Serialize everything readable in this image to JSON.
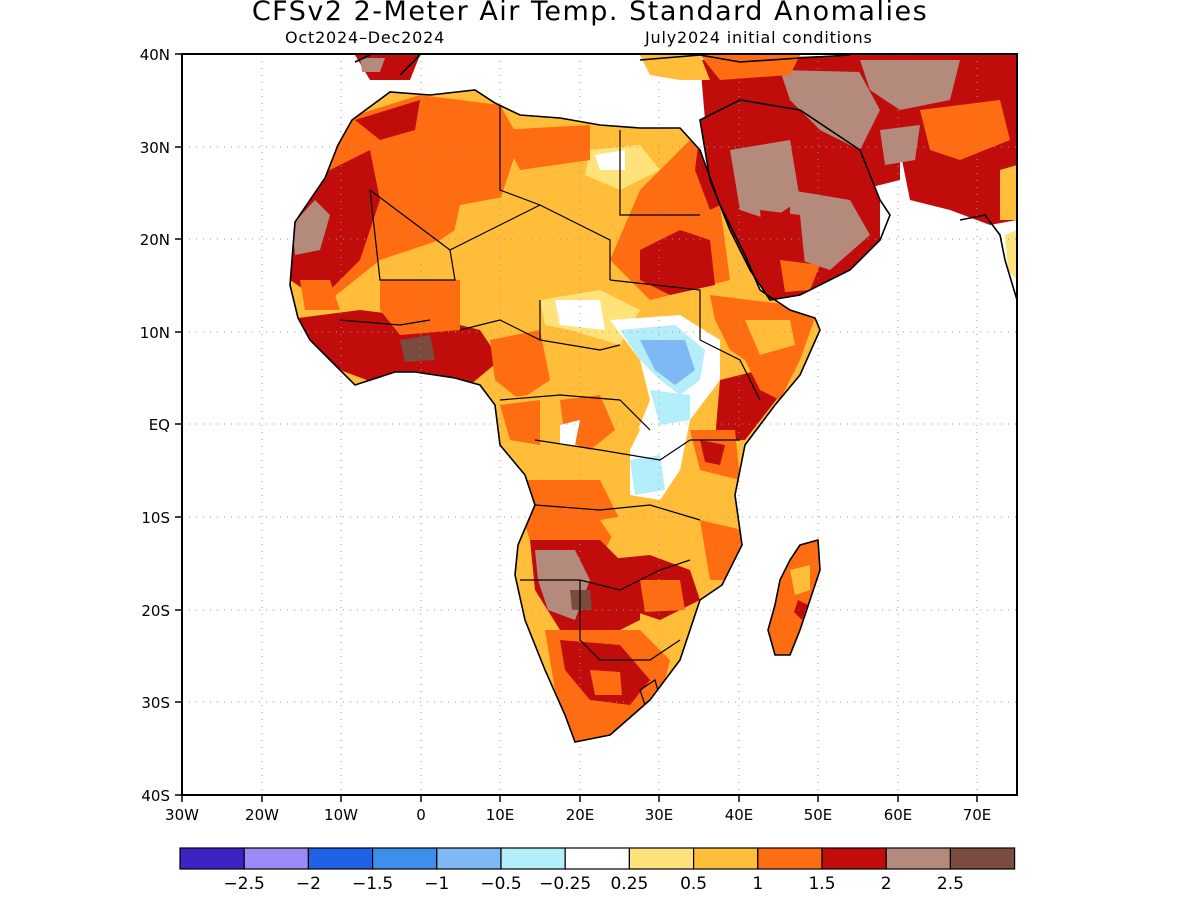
{
  "title": "CFSv2 2-Meter Air Temp. Standard Anomalies",
  "subtitle_period": "Oct2024–Dec2024",
  "subtitle_init": "July2024 initial conditions",
  "axes": {
    "lat_ticks": [
      "40N",
      "30N",
      "20N",
      "10N",
      "EQ",
      "10S",
      "20S",
      "30S",
      "40S"
    ],
    "lon_ticks": [
      "30W",
      "20W",
      "10W",
      "0",
      "10E",
      "20E",
      "30E",
      "40E",
      "50E",
      "60E",
      "70E"
    ],
    "lat_range": [
      -40,
      40
    ],
    "lon_range": [
      -30,
      75
    ],
    "grid": "dotted"
  },
  "legend": {
    "colors": [
      "#3f22c4",
      "#9b8af5",
      "#1f62e6",
      "#3b90ee",
      "#7eb8f5",
      "#b3eefa",
      "#ffffff",
      "#ffe37a",
      "#ffbd3a",
      "#ff6d12",
      "#c10c0c",
      "#b48a7c",
      "#7a4b3e"
    ],
    "labels": [
      "−2.5",
      "−2",
      "−1.5",
      "−1",
      "−0.5",
      "−0.25",
      "0.25",
      "0.5",
      "1",
      "1.5",
      "2",
      "2.5"
    ]
  }
}
